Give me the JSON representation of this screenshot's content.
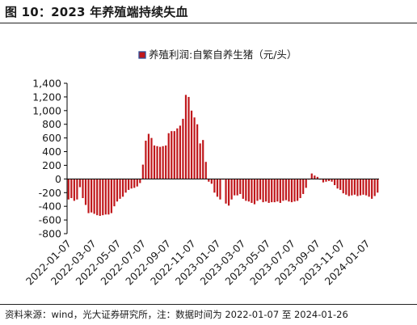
{
  "figure": {
    "title": "图 10：2023 年养殖端持续失血",
    "source": "资料来源：wind，光大证券研究所，注：数据时间为 2022-01-07 至 2024-01-26"
  },
  "colors": {
    "bar": "#c0171b",
    "axis": "#000000",
    "text": "#1a1a1a"
  },
  "chart_data": {
    "type": "bar",
    "legend": {
      "label": "养殖利润:自繁自养生猪（元/头）",
      "position": "top-center"
    },
    "ylim": [
      -800,
      1400
    ],
    "yticks": [
      -800,
      -600,
      -400,
      -200,
      0,
      200,
      400,
      600,
      800,
      1000,
      1200,
      1400
    ],
    "x_tick_labels": [
      "2022-01-07",
      "2022-03-07",
      "2022-05-07",
      "2022-07-07",
      "2022-09-07",
      "2022-11-07",
      "2023-01-07",
      "2023-03-07",
      "2023-05-07",
      "2023-07-07",
      "2023-09-07",
      "2023-11-07",
      "2024-01-07"
    ],
    "grid": false,
    "series": [
      {
        "name": "养殖利润:自繁自养生猪（元/头）",
        "frequency": "weekly, 2022-01-07 to 2024-01-26",
        "values": [
          -300,
          -280,
          -320,
          -300,
          -120,
          -280,
          -380,
          -500,
          -490,
          -510,
          -530,
          -540,
          -530,
          -520,
          -520,
          -500,
          -400,
          -330,
          -290,
          -260,
          -200,
          -160,
          -140,
          -130,
          -110,
          -60,
          210,
          560,
          660,
          600,
          490,
          480,
          470,
          480,
          490,
          670,
          700,
          700,
          740,
          780,
          880,
          1230,
          1200,
          1000,
          900,
          800,
          520,
          570,
          250,
          -40,
          -70,
          -200,
          -260,
          -300,
          -10,
          -360,
          -390,
          -300,
          -240,
          -240,
          -220,
          -290,
          -320,
          -330,
          -350,
          -370,
          -320,
          -300,
          -340,
          -330,
          -350,
          -340,
          -340,
          -330,
          -350,
          -320,
          -310,
          -330,
          -340,
          -330,
          -320,
          -280,
          -220,
          -130,
          -10,
          80,
          50,
          30,
          -10,
          -50,
          -40,
          -30,
          -40,
          -90,
          -140,
          -160,
          -210,
          -230,
          -250,
          -240,
          -230,
          -250,
          -240,
          -230,
          -240,
          -260,
          -290,
          -250,
          -200
        ]
      }
    ]
  }
}
